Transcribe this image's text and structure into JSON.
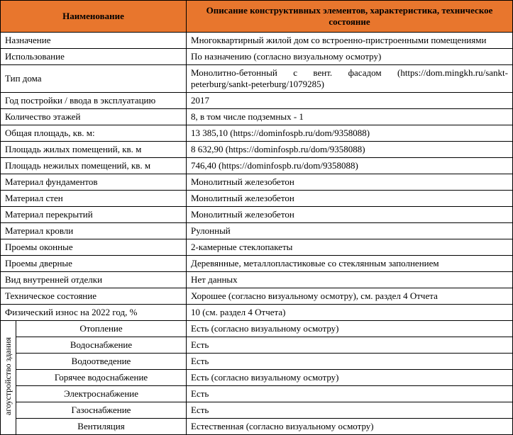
{
  "header": {
    "col1": "Наименование",
    "col2": "Описание конструктивных элементов, характеристика, техническое состояние"
  },
  "header_bg": "#e8762d",
  "rows": [
    {
      "label": "Назначение",
      "value": "Многоквартирный жилой дом со встроенно-пристроенными помещениями"
    },
    {
      "label": "Использование",
      "value": "По назначению (согласно визуальному осмотру)"
    },
    {
      "label": "Тип дома",
      "value": "Монолитно-бетонный с вент. фасадом (https://dom.mingkh.ru/sankt-peterburg/sankt-peterburg/1079285)",
      "justify": true
    },
    {
      "label": "Год постройки / ввода в эксплуатацию",
      "value": "2017"
    },
    {
      "label": "Количество этажей",
      "value": "8, в том числе подземных - 1"
    },
    {
      "label": "Общая площадь, кв. м:",
      "value": "13 385,10 (https://dominfospb.ru/dom/9358088)"
    },
    {
      "label": "Площадь жилых помещений, кв. м",
      "value": "8 632,90 (https://dominfospb.ru/dom/9358088)"
    },
    {
      "label": "Площадь нежилых помещений, кв. м",
      "value": "746,40 (https://dominfospb.ru/dom/9358088)"
    },
    {
      "label": "Материал фундаментов",
      "value": "Монолитный железобетон"
    },
    {
      "label": " Материал стен",
      "value": " Монолитный железобетон"
    },
    {
      "label": "Материал перекрытий",
      "value": "Монолитный железобетон"
    },
    {
      "label": "Материал кровли",
      "value": "Рулонный"
    },
    {
      "label": "Проемы оконные",
      "value": "2-камерные стеклопакеты"
    },
    {
      "label": "Проемы дверные",
      "value": "Деревянные, металлопластиковые со стеклянным заполнением"
    },
    {
      "label": "Вид внутренней отделки",
      "value": "Нет данных"
    },
    {
      "label": "Техническое состояние",
      "value": "Хорошее (согласно визуальному осмотру), см. раздел 4 Отчета"
    },
    {
      "label": "Физический износ на 2022 год, %",
      "value": "10 (см. раздел 4 Отчета)"
    }
  ],
  "sub": {
    "side_label": "агоустройство здания",
    "rows": [
      {
        "label": "Отопление",
        "value": "Есть (согласно визуальному осмотру)"
      },
      {
        "label": "Водоснабжение",
        "value": "Есть"
      },
      {
        "label": "Водоотведение",
        "value": "Есть"
      },
      {
        "label": "Горячее водоснабжение",
        "value": "Есть (согласно визуальному осмотру)"
      },
      {
        "label": "Электроснабжение",
        "value": "Есть"
      },
      {
        "label": "Газоснабжение",
        "value": "Есть"
      },
      {
        "label": "Вентиляция",
        "value": "Естественная (согласно визуальному осмотру)"
      }
    ]
  }
}
